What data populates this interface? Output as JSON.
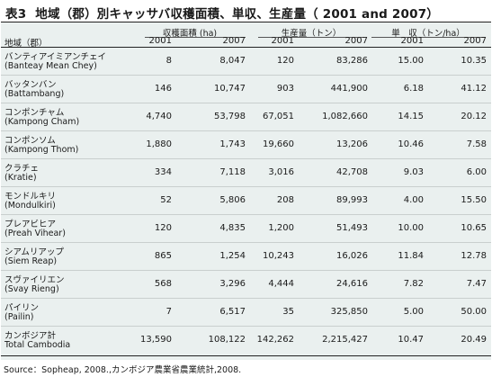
{
  "title": {
    "number": "表3",
    "text": "地域（郡）別キャッサバ収穫面積、単収、生産量（ 2001 and 2007）"
  },
  "header": {
    "region": "地域（郡）",
    "groups": [
      {
        "label": "収穫面積 (ha)",
        "years": [
          "2001",
          "2007"
        ]
      },
      {
        "label": "生産量（トン）",
        "years": [
          "2001",
          "2007"
        ]
      },
      {
        "label": "単　収（トン/ha）",
        "years": [
          "2001",
          "2007"
        ]
      }
    ]
  },
  "rows": [
    {
      "jp": "バンティアイミアンチェイ",
      "en": "(Banteay Mean Chey)",
      "values": [
        "8",
        "8,047",
        "120",
        "83,286",
        "15.00",
        "10.35"
      ]
    },
    {
      "jp": "バッタンバン",
      "en": "(Battambang)",
      "values": [
        "146",
        "10,747",
        "903",
        "441,900",
        "6.18",
        "41.12"
      ]
    },
    {
      "jp": "コンポンチャム",
      "en": "(Kampong Cham)",
      "values": [
        "4,740",
        "53,798",
        "67,051",
        "1,082,660",
        "14.15",
        "20.12"
      ]
    },
    {
      "jp": "コンポンソム",
      "en": "(Kampong Thom)",
      "values": [
        "1,880",
        "1,743",
        "19,660",
        "13,206",
        "10.46",
        "7.58"
      ]
    },
    {
      "jp": "クラチェ",
      "en": "(Kratie)",
      "values": [
        "334",
        "7,118",
        "3,016",
        "42,708",
        "9.03",
        "6.00"
      ]
    },
    {
      "jp": "モンドルキリ",
      "en": "(Mondulkiri)",
      "values": [
        "52",
        "5,806",
        "208",
        "89,993",
        "4.00",
        "15.50"
      ]
    },
    {
      "jp": "プレアビヒア",
      "en": "(Preah Vihear)",
      "values": [
        "120",
        "4,835",
        "1,200",
        "51,493",
        "10.00",
        "10.65"
      ]
    },
    {
      "jp": "シアムリアップ",
      "en": "(Siem Reap)",
      "values": [
        "865",
        "1,254",
        "10,243",
        "16,026",
        "11.84",
        "12.78"
      ]
    },
    {
      "jp": "スヴァイリエン",
      "en": "(Svay Rieng)",
      "values": [
        "568",
        "3,296",
        "4,444",
        "24,616",
        "7.82",
        "7.47"
      ]
    },
    {
      "jp": "パイリン",
      "en": "(Pailin)",
      "values": [
        "7",
        "6,517",
        "35",
        "325,850",
        "5.00",
        "50.00"
      ]
    },
    {
      "jp": "カンボジア計",
      "en": "Total Cambodia",
      "values": [
        "13,590",
        "108,122",
        "142,262",
        "2,215,427",
        "10.47",
        "20.49"
      ]
    }
  ],
  "source": "Source：Sopheap, 2008.,カンボジア農業省農業統計,2008."
}
